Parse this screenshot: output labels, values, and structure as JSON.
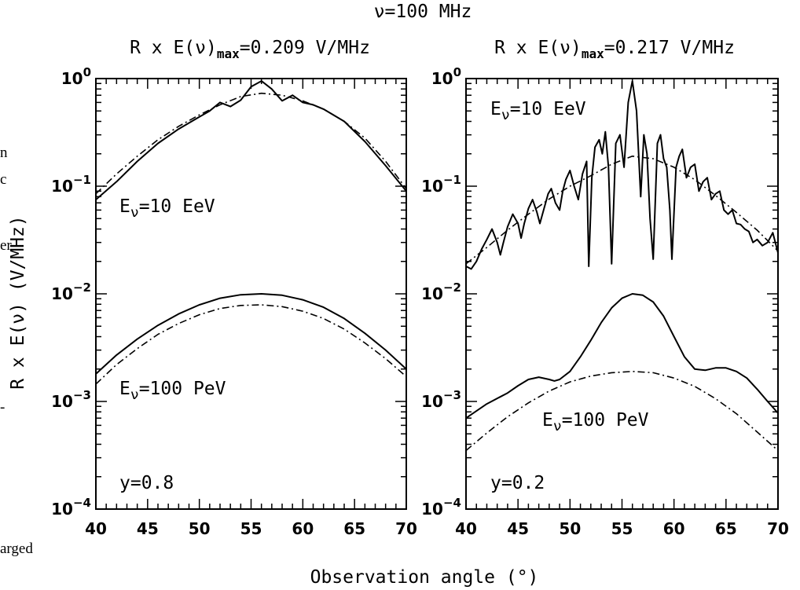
{
  "figure": {
    "suptitle": "ν=100 MHz",
    "xlabel": "Observation angle (°)",
    "ylabel": "R x E(ν) (V/MHz)",
    "side_fragments": [
      "n",
      "c",
      "er",
      "-",
      "arged"
    ]
  },
  "chart_data": [
    {
      "type": "line",
      "title_prefix": "R x E(ν)",
      "title_sub": "max",
      "title_value": "=0.209 V/MHz",
      "xlim": [
        40,
        70
      ],
      "ylim": [
        0.0001,
        1
      ],
      "yscale": "log",
      "xticks": [
        "40",
        "45",
        "50",
        "55",
        "60",
        "65",
        "70"
      ],
      "yticks": [
        {
          "base": "10",
          "exp": "0"
        },
        {
          "base": "10",
          "exp": "−1"
        },
        {
          "base": "10",
          "exp": "−2"
        },
        {
          "base": "10",
          "exp": "−3"
        },
        {
          "base": "10",
          "exp": "−4"
        }
      ],
      "annotations": {
        "high_energy": "Eν=10 EeV",
        "low_energy": "Eν=100 PeV",
        "y_param": "y=0.8"
      },
      "series": [
        {
          "style": "solid",
          "group": "10 EeV",
          "x": [
            40,
            42,
            44,
            46,
            48,
            50,
            51,
            52,
            53,
            54,
            55,
            56,
            57,
            58,
            59,
            60,
            61,
            62,
            64,
            66,
            68,
            70
          ],
          "y": [
            0.075,
            0.11,
            0.17,
            0.25,
            0.34,
            0.44,
            0.5,
            0.6,
            0.55,
            0.63,
            0.84,
            0.95,
            0.8,
            0.62,
            0.7,
            0.6,
            0.57,
            0.52,
            0.4,
            0.26,
            0.155,
            0.09
          ]
        },
        {
          "style": "dashdot",
          "group": "10 EeV",
          "x": [
            40,
            42,
            44,
            46,
            48,
            50,
            52,
            54,
            56,
            58,
            60,
            62,
            64,
            66,
            68,
            70
          ],
          "y": [
            0.085,
            0.13,
            0.19,
            0.27,
            0.36,
            0.46,
            0.57,
            0.68,
            0.73,
            0.7,
            0.62,
            0.52,
            0.4,
            0.28,
            0.17,
            0.095
          ]
        },
        {
          "style": "solid",
          "group": "100 PeV",
          "x": [
            40,
            42,
            44,
            46,
            48,
            50,
            52,
            54,
            56,
            58,
            60,
            62,
            64,
            66,
            68,
            70
          ],
          "y": [
            0.0018,
            0.0027,
            0.0038,
            0.0051,
            0.0065,
            0.0079,
            0.0091,
            0.0098,
            0.01,
            0.0097,
            0.0088,
            0.0075,
            0.0059,
            0.0043,
            0.003,
            0.002
          ]
        },
        {
          "style": "dashdot",
          "group": "100 PeV",
          "x": [
            40,
            42,
            44,
            46,
            48,
            50,
            52,
            54,
            56,
            58,
            60,
            62,
            64,
            66,
            68,
            70
          ],
          "y": [
            0.00145,
            0.0022,
            0.0031,
            0.0042,
            0.0053,
            0.0064,
            0.0073,
            0.0078,
            0.0079,
            0.0076,
            0.0069,
            0.0059,
            0.0047,
            0.0035,
            0.0025,
            0.0017
          ]
        }
      ]
    },
    {
      "type": "line",
      "title_prefix": "R x E(ν)",
      "title_sub": "max",
      "title_value": "=0.217 V/MHz",
      "xlim": [
        40,
        70
      ],
      "ylim": [
        0.0001,
        1
      ],
      "yscale": "log",
      "xticks": [
        "40",
        "45",
        "50",
        "55",
        "60",
        "65",
        "70"
      ],
      "yticks": [
        {
          "base": "10",
          "exp": "0"
        },
        {
          "base": "10",
          "exp": "−1"
        },
        {
          "base": "10",
          "exp": "−2"
        },
        {
          "base": "10",
          "exp": "−3"
        },
        {
          "base": "10",
          "exp": "−4"
        }
      ],
      "annotations": {
        "high_energy": "Eν=10 EeV",
        "low_energy": "Eν=100 PeV",
        "y_param": "y=0.2"
      },
      "series": [
        {
          "style": "solid",
          "group": "10 EeV",
          "x": [
            40,
            40.5,
            41,
            41.5,
            42,
            42.5,
            43,
            43.3,
            43.6,
            44,
            44.5,
            45,
            45.3,
            45.6,
            46,
            46.4,
            46.8,
            47.1,
            47.5,
            47.9,
            48.2,
            48.6,
            49,
            49.3,
            49.6,
            50,
            50.4,
            50.8,
            51.2,
            51.6,
            51.8,
            52.1,
            52.4,
            52.8,
            53.1,
            53.4,
            53.7,
            54,
            54.4,
            54.8,
            55.2,
            55.6,
            56,
            56.4,
            56.8,
            57.1,
            57.4,
            57.7,
            58,
            58.4,
            58.7,
            59,
            59.3,
            59.6,
            59.8,
            60.2,
            60.5,
            60.8,
            61.2,
            61.6,
            62,
            62.4,
            62.8,
            63.2,
            63.6,
            64,
            64.4,
            64.8,
            65.2,
            65.6,
            66,
            66.4,
            66.8,
            67.2,
            67.6,
            68,
            68.5,
            69,
            69.5,
            70
          ],
          "y": [
            0.018,
            0.017,
            0.02,
            0.026,
            0.032,
            0.04,
            0.03,
            0.023,
            0.03,
            0.042,
            0.055,
            0.045,
            0.033,
            0.045,
            0.062,
            0.075,
            0.058,
            0.045,
            0.062,
            0.085,
            0.095,
            0.07,
            0.06,
            0.09,
            0.115,
            0.14,
            0.1,
            0.075,
            0.13,
            0.17,
            0.018,
            0.12,
            0.23,
            0.27,
            0.2,
            0.32,
            0.15,
            0.019,
            0.25,
            0.3,
            0.15,
            0.6,
            0.95,
            0.5,
            0.08,
            0.3,
            0.2,
            0.05,
            0.021,
            0.25,
            0.3,
            0.18,
            0.15,
            0.06,
            0.021,
            0.15,
            0.19,
            0.22,
            0.12,
            0.15,
            0.16,
            0.09,
            0.11,
            0.12,
            0.075,
            0.085,
            0.09,
            0.06,
            0.055,
            0.06,
            0.045,
            0.044,
            0.04,
            0.038,
            0.03,
            0.032,
            0.028,
            0.03,
            0.037,
            0.024
          ]
        },
        {
          "style": "dashdot",
          "group": "10 EeV",
          "x": [
            40,
            42,
            44,
            46,
            48,
            50,
            52,
            54,
            56,
            58,
            60,
            62,
            64,
            66,
            68,
            70
          ],
          "y": [
            0.019,
            0.027,
            0.039,
            0.055,
            0.076,
            0.1,
            0.125,
            0.16,
            0.19,
            0.18,
            0.15,
            0.115,
            0.082,
            0.057,
            0.039,
            0.025
          ]
        },
        {
          "style": "solid",
          "group": "100 PeV",
          "x": [
            40,
            42,
            44,
            45,
            46,
            47,
            48,
            48.5,
            49,
            50,
            51,
            52,
            53,
            54,
            55,
            56,
            57,
            58,
            59,
            60,
            61,
            62,
            63,
            64,
            65,
            66,
            67,
            68,
            69,
            70
          ],
          "y": [
            0.0007,
            0.00095,
            0.0012,
            0.0014,
            0.0016,
            0.00168,
            0.0016,
            0.00155,
            0.0016,
            0.0019,
            0.0026,
            0.0037,
            0.0054,
            0.0074,
            0.0091,
            0.01,
            0.0097,
            0.0084,
            0.0062,
            0.004,
            0.0026,
            0.002,
            0.00195,
            0.00205,
            0.00205,
            0.0019,
            0.00165,
            0.0013,
            0.001,
            0.00078
          ]
        },
        {
          "style": "dashdot",
          "group": "100 PeV",
          "x": [
            40,
            42,
            44,
            46,
            48,
            50,
            52,
            54,
            56,
            58,
            60,
            62,
            64,
            66,
            68,
            70
          ],
          "y": [
            0.00035,
            0.00051,
            0.00072,
            0.00097,
            0.00125,
            0.00152,
            0.00172,
            0.00185,
            0.0019,
            0.00185,
            0.00165,
            0.00138,
            0.00106,
            0.00077,
            0.00052,
            0.00035
          ]
        }
      ]
    }
  ]
}
